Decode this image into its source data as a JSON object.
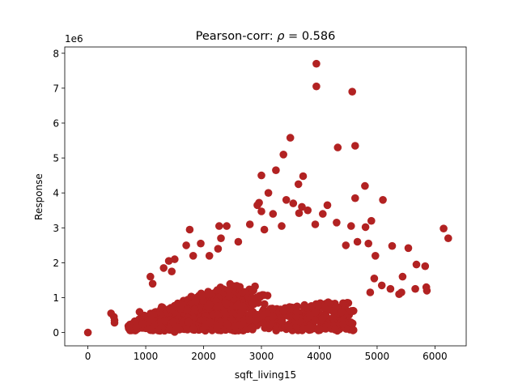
{
  "chart_data": {
    "type": "scatter",
    "title": "Pearson-corr: ρ = 0.586",
    "title_prefix": "Pearson-corr: ",
    "title_rho": "ρ",
    "title_value": " = 0.586",
    "xlabel": "sqft_living15",
    "ylabel": "Response",
    "y_offset_label": "1e6",
    "xlim": [
      -400,
      6540
    ],
    "ylim": [
      -0.38,
      8.18
    ],
    "xticks": [
      0,
      1000,
      2000,
      3000,
      4000,
      5000,
      6000
    ],
    "yticks": [
      0,
      1,
      2,
      3,
      4,
      5,
      6,
      7,
      8
    ],
    "marker_color": "#b22222",
    "grid": false,
    "legend": "none",
    "points": [
      [
        0,
        0.0
      ],
      [
        400,
        0.55
      ],
      [
        450,
        0.45
      ],
      [
        460,
        0.28
      ],
      [
        460,
        0.35
      ],
      [
        3950,
        7.7
      ],
      [
        3950,
        7.05
      ],
      [
        4570,
        6.9
      ],
      [
        3500,
        5.58
      ],
      [
        4620,
        5.35
      ],
      [
        4320,
        5.3
      ],
      [
        3380,
        5.1
      ],
      [
        3000,
        4.5
      ],
      [
        3250,
        4.65
      ],
      [
        3720,
        4.48
      ],
      [
        4790,
        4.2
      ],
      [
        3640,
        4.25
      ],
      [
        3120,
        4.0
      ],
      [
        4620,
        3.85
      ],
      [
        5100,
        3.8
      ],
      [
        3430,
        3.8
      ],
      [
        3550,
        3.7
      ],
      [
        2930,
        3.65
      ],
      [
        2960,
        3.72
      ],
      [
        4140,
        3.65
      ],
      [
        3700,
        3.6
      ],
      [
        3650,
        3.42
      ],
      [
        3800,
        3.5
      ],
      [
        3000,
        3.47
      ],
      [
        3200,
        3.4
      ],
      [
        4060,
        3.4
      ],
      [
        4900,
        3.2
      ],
      [
        4800,
        3.02
      ],
      [
        4300,
        3.15
      ],
      [
        4550,
        3.05
      ],
      [
        6150,
        2.98
      ],
      [
        6230,
        2.7
      ],
      [
        1760,
        2.95
      ],
      [
        2270,
        3.05
      ],
      [
        2400,
        3.05
      ],
      [
        2800,
        3.1
      ],
      [
        3050,
        2.95
      ],
      [
        3350,
        3.05
      ],
      [
        3930,
        3.1
      ],
      [
        4660,
        2.6
      ],
      [
        4850,
        2.55
      ],
      [
        5260,
        2.48
      ],
      [
        5540,
        2.42
      ],
      [
        4970,
        2.2
      ],
      [
        4460,
        2.5
      ],
      [
        2600,
        2.6
      ],
      [
        2300,
        2.7
      ],
      [
        1700,
        2.5
      ],
      [
        1950,
        2.55
      ],
      [
        2250,
        2.4
      ],
      [
        2100,
        2.2
      ],
      [
        5680,
        1.95
      ],
      [
        5830,
        1.9
      ],
      [
        5440,
        1.6
      ],
      [
        5660,
        1.25
      ],
      [
        5850,
        1.3
      ],
      [
        5860,
        1.2
      ],
      [
        5420,
        1.15
      ],
      [
        5230,
        1.25
      ],
      [
        5380,
        1.1
      ],
      [
        4950,
        1.55
      ],
      [
        5080,
        1.35
      ],
      [
        4880,
        1.15
      ],
      [
        1080,
        1.6
      ],
      [
        1120,
        1.4
      ],
      [
        1310,
        1.85
      ],
      [
        1450,
        1.75
      ],
      [
        1500,
        2.1
      ],
      [
        1820,
        2.2
      ],
      [
        1400,
        2.05
      ],
      [
        4450,
        0.6
      ],
      [
        3930,
        0.45
      ],
      [
        3300,
        0.18
      ],
      [
        2750,
        0.2
      ],
      [
        2020,
        0.1
      ],
      [
        1500,
        0.02
      ]
    ]
  }
}
